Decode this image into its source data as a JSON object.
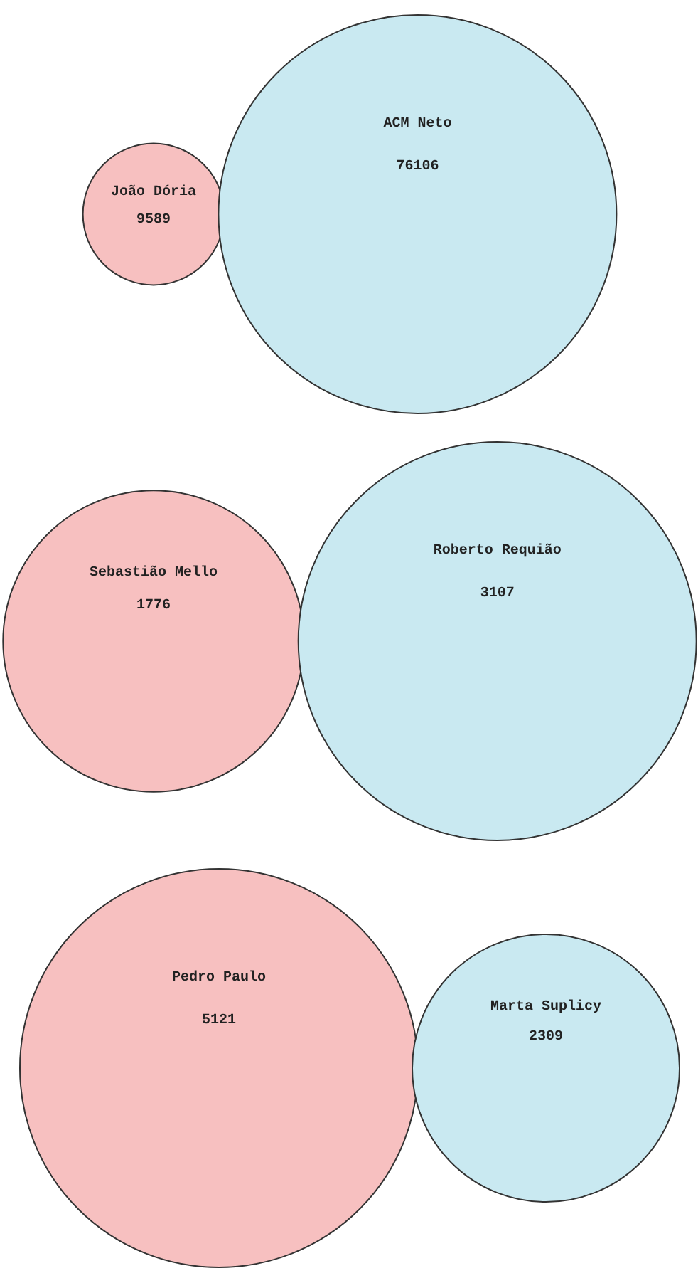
{
  "chart_data": [
    {
      "type": "other",
      "data_labels": true,
      "series": [
        {
          "name": "João Dória",
          "color": "#f7c0c0",
          "values": [
            9589
          ]
        },
        {
          "name": "ACM Neto",
          "color": "#c9e9f1",
          "values": [
            76106
          ]
        }
      ]
    },
    {
      "type": "other",
      "data_labels": true,
      "series": [
        {
          "name": "Sebastião Mello",
          "color": "#f7c0c0",
          "values": [
            1776
          ]
        },
        {
          "name": "Roberto Requião",
          "color": "#c9e9f1",
          "values": [
            3107
          ]
        }
      ]
    },
    {
      "type": "other",
      "data_labels": true,
      "series": [
        {
          "name": "Pedro Paulo",
          "color": "#f7c0c0",
          "values": [
            5121
          ]
        },
        {
          "name": "Marta Suplicy",
          "color": "#c9e9f1",
          "values": [
            2309
          ]
        }
      ]
    }
  ]
}
